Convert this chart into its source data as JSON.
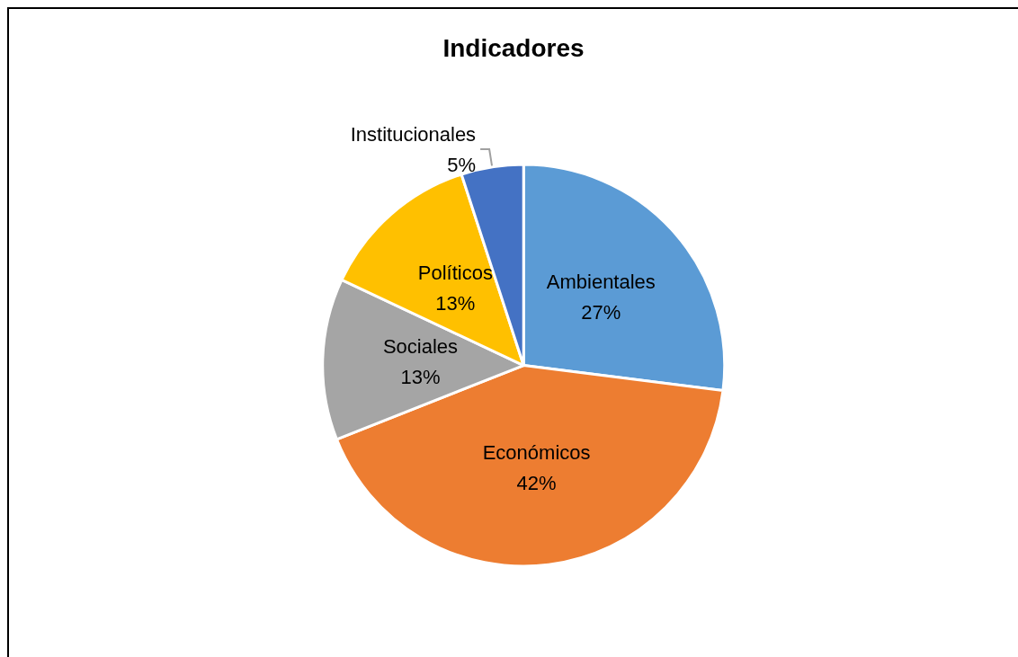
{
  "chart_data": {
    "type": "pie",
    "title": "Indicadores",
    "categories": [
      "Ambientales",
      "Económicos",
      "Sociales",
      "Políticos",
      "Institucionales"
    ],
    "values": [
      27,
      42,
      13,
      13,
      5
    ],
    "value_labels": [
      "27%",
      "42%",
      "13%",
      "13%",
      "5%"
    ],
    "colors": [
      "#5b9bd5",
      "#ed7d31",
      "#a5a5a5",
      "#ffc000",
      "#4472c4"
    ],
    "legend": false
  }
}
